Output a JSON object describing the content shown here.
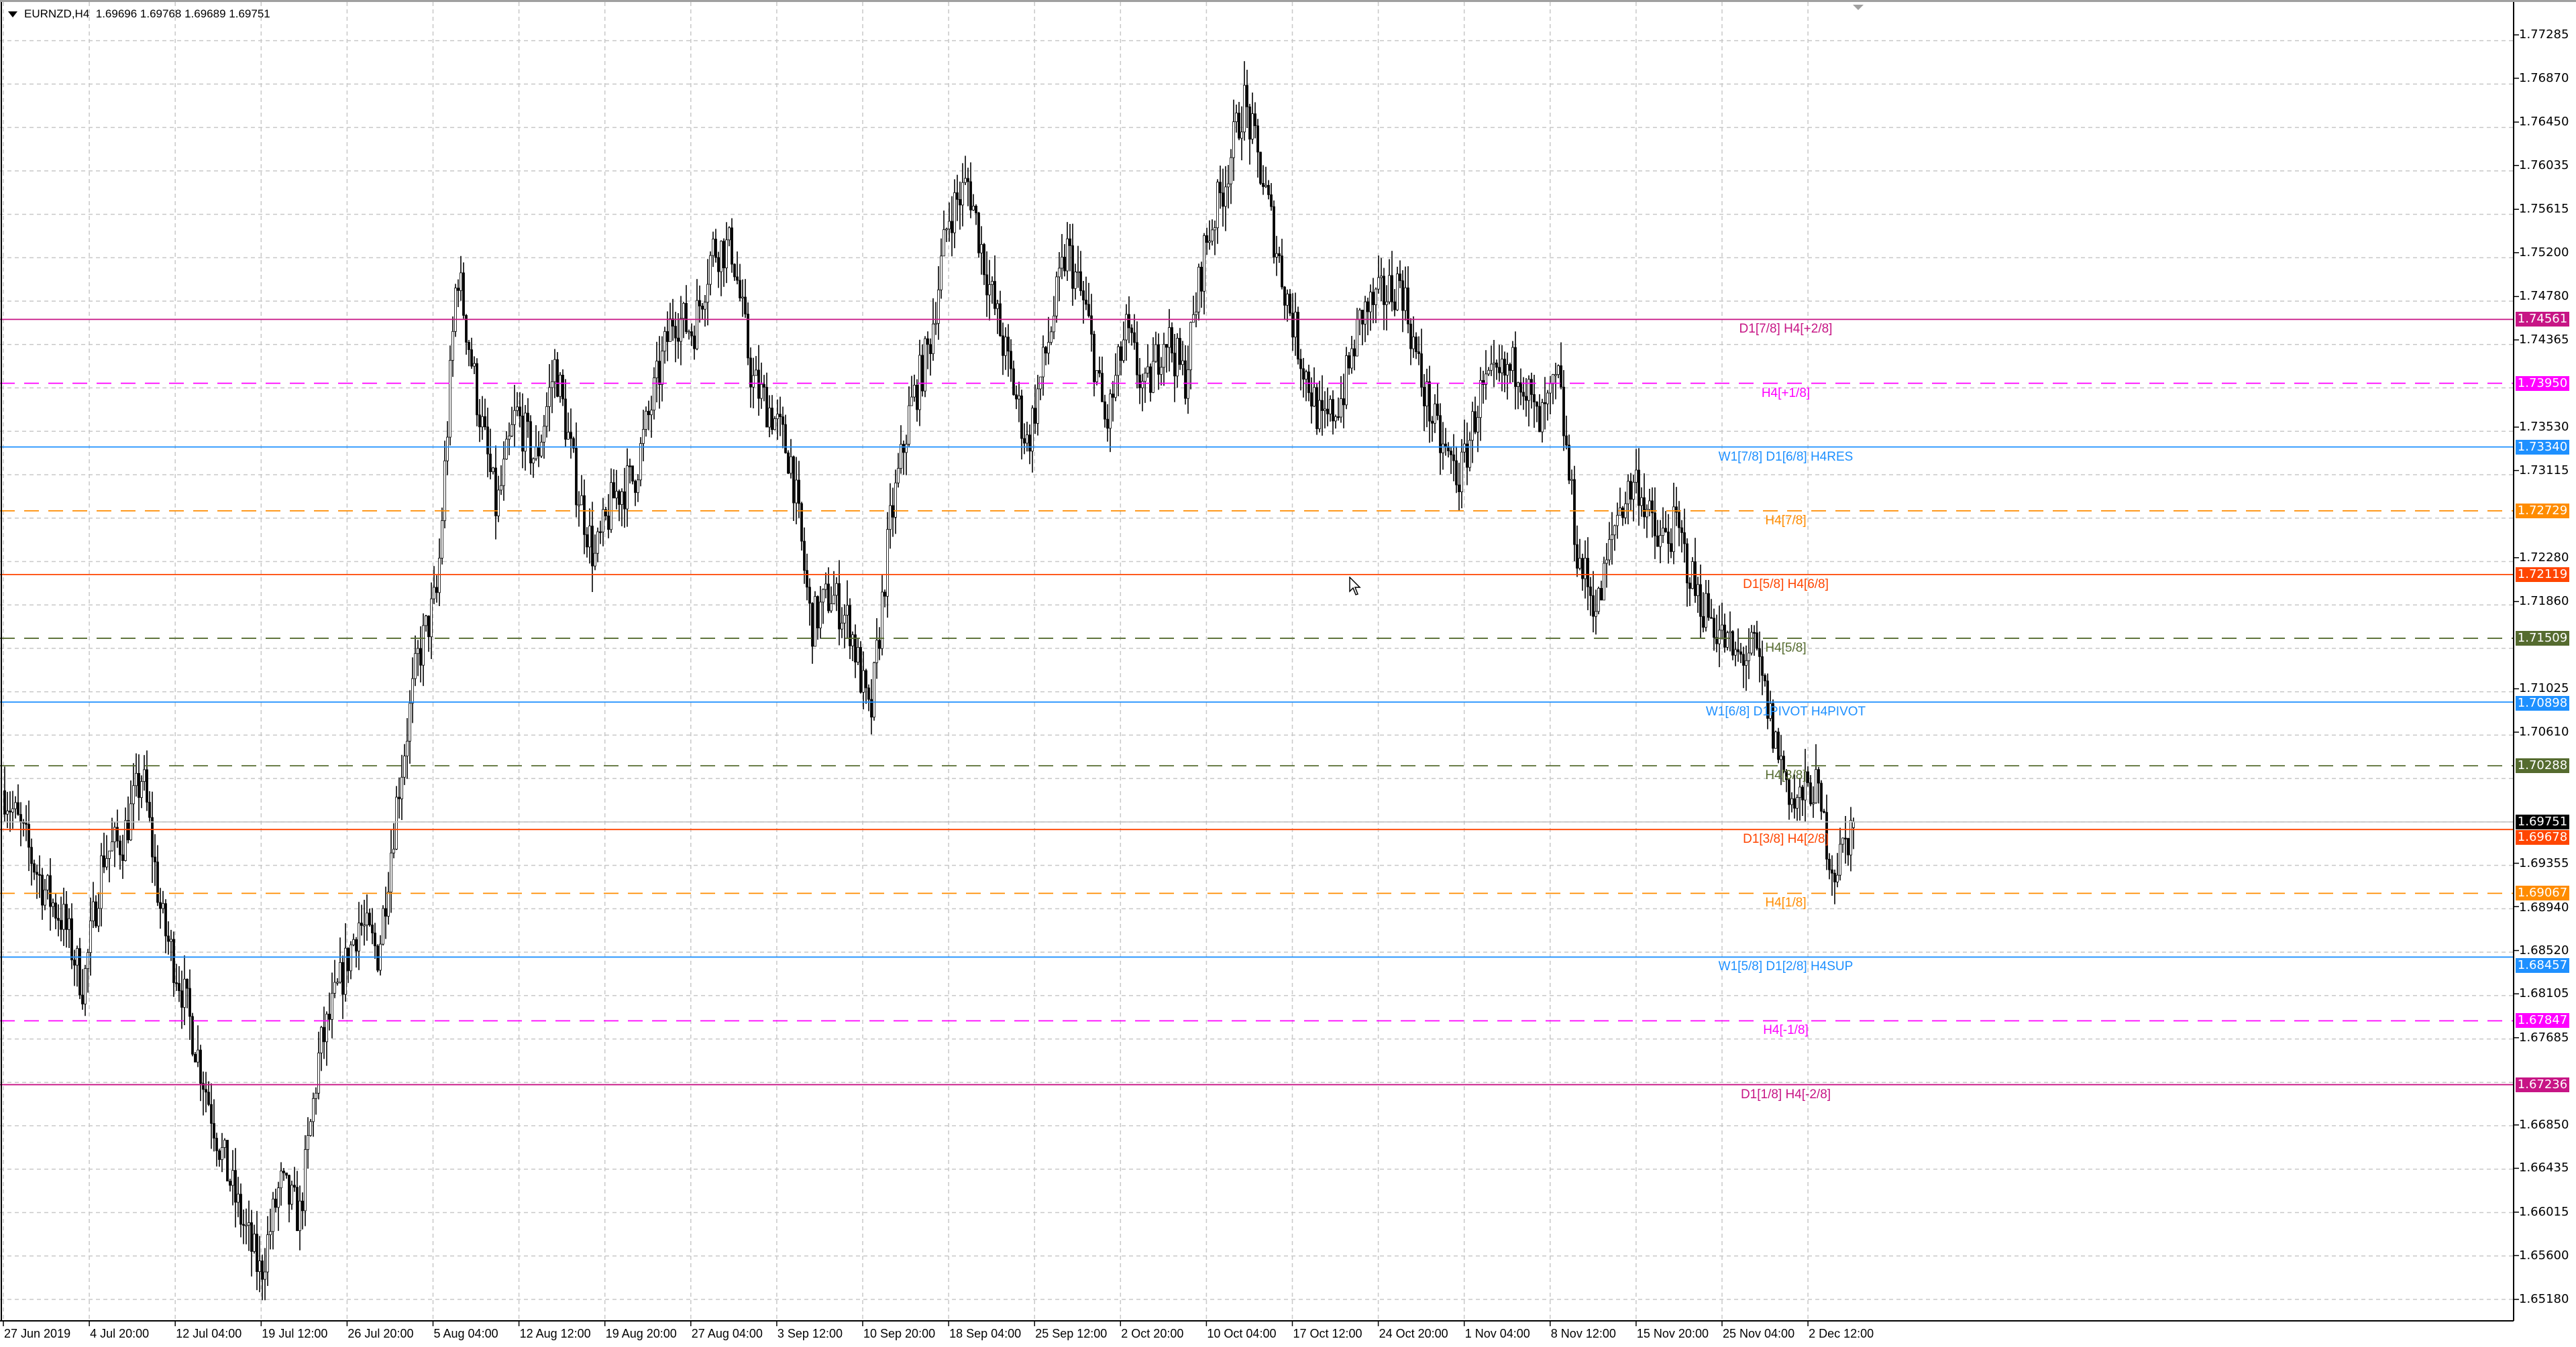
{
  "window": {
    "symbol": "EURNZD,H4",
    "ohlc": "1.69696 1.69768 1.69689 1.69751"
  },
  "chart_data": {
    "type": "candlestick",
    "symbol": "EURNZD",
    "timeframe": "H4",
    "last_bar": {
      "open": 1.69696,
      "high": 1.69768,
      "low": 1.69689,
      "close": 1.69751
    },
    "current_price": 1.69751,
    "ylim": [
      1.65,
      1.776
    ],
    "price_ticks": [
      "1.77285",
      "1.76870",
      "1.76450",
      "1.76035",
      "1.75615",
      "1.75200",
      "1.74780",
      "1.74365",
      "1.73530",
      "1.73115",
      "1.72280",
      "1.71860",
      "1.71025",
      "1.70610",
      "1.69355",
      "1.68940",
      "1.68520",
      "1.68105",
      "1.67685",
      "1.66850",
      "1.66435",
      "1.66015",
      "1.65600",
      "1.65180"
    ],
    "time_ticks": [
      "27 Jun 2019",
      "4 Jul 20:00",
      "12 Jul 04:00",
      "19 Jul 12:00",
      "26 Jul 20:00",
      "5 Aug 04:00",
      "12 Aug 12:00",
      "19 Aug 20:00",
      "27 Aug 04:00",
      "3 Sep 12:00",
      "10 Sep 20:00",
      "18 Sep 04:00",
      "25 Sep 12:00",
      "2 Oct 20:00",
      "10 Oct 04:00",
      "17 Oct 12:00",
      "24 Oct 20:00",
      "1 Nov 04:00",
      "8 Nov 12:00",
      "15 Nov 20:00",
      "25 Nov 04:00",
      "2 Dec 12:00"
    ],
    "approx_close_path": [
      1.7005,
      1.6958,
      1.6911,
      1.688,
      1.6817,
      1.6943,
      1.6958,
      1.7021,
      1.688,
      1.6817,
      1.6738,
      1.666,
      1.6597,
      1.6542,
      1.6628,
      1.6597,
      1.6754,
      1.6817,
      1.688,
      1.6849,
      1.7005,
      1.7131,
      1.7194,
      1.7508,
      1.7383,
      1.7273,
      1.7367,
      1.732,
      1.7414,
      1.7304,
      1.7226,
      1.7288,
      1.7304,
      1.7383,
      1.7461,
      1.7445,
      1.7524,
      1.7524,
      1.7398,
      1.7367,
      1.732,
      1.7163,
      1.7194,
      1.7163,
      1.7069,
      1.7257,
      1.7367,
      1.743,
      1.7556,
      1.7587,
      1.7493,
      1.7414,
      1.7336,
      1.743,
      1.7524,
      1.7461,
      1.7351,
      1.7445,
      1.7383,
      1.7445,
      1.7398,
      1.7524,
      1.7587,
      1.7666,
      1.7587,
      1.7493,
      1.7414,
      1.7351,
      1.7383,
      1.7461,
      1.7477,
      1.7493,
      1.7398,
      1.7336,
      1.7304,
      1.7383,
      1.7398,
      1.7414,
      1.7351,
      1.7398,
      1.7226,
      1.7179,
      1.7273,
      1.7304,
      1.7241,
      1.7257,
      1.7194,
      1.7163,
      1.7131,
      1.7139,
      1.7053,
      1.699,
      1.7013,
      1.6927,
      1.6975
    ],
    "levels": [
      {
        "price": "1.74561",
        "label": "D1[7/8] H4[+2/8]",
        "color": "#c71585",
        "style": "solid"
      },
      {
        "price": "1.73950",
        "label": "H4[+1/8]",
        "color": "#ff00ff",
        "style": "dashed"
      },
      {
        "price": "1.73340",
        "label": "W1[7/8] D1[6/8] H4RES",
        "color": "#1e90ff",
        "style": "solid"
      },
      {
        "price": "1.72729",
        "label": "H4[7/8]",
        "color": "#ff8c00",
        "style": "dashed"
      },
      {
        "price": "1.72119",
        "label": "D1[5/8] H4[6/8]",
        "color": "#ff4500",
        "style": "solid"
      },
      {
        "price": "1.71509",
        "label": "H4[5/8]",
        "color": "#556b2f",
        "style": "dashed"
      },
      {
        "price": "1.70898",
        "label": "W1[6/8] D1PIVOT H4PIVOT",
        "color": "#1e90ff",
        "style": "solid"
      },
      {
        "price": "1.70288",
        "label": "H4[3/8]",
        "color": "#556b2f",
        "style": "dashed"
      },
      {
        "price": "1.69678",
        "label": "D1[3/8] H4[2/8]",
        "color": "#ff4500",
        "style": "solid"
      },
      {
        "price": "1.69067",
        "label": "H4[1/8]",
        "color": "#ff8c00",
        "style": "dashed"
      },
      {
        "price": "1.68457",
        "label": "W1[5/8] D1[2/8] H4SUP",
        "color": "#1e90ff",
        "style": "solid"
      },
      {
        "price": "1.67847",
        "label": "H4[-1/8]",
        "color": "#ff00ff",
        "style": "dashed"
      },
      {
        "price": "1.67236",
        "label": "D1[1/8] H4[-2/8]",
        "color": "#c71585",
        "style": "solid"
      }
    ],
    "grid": true,
    "colors": {
      "bull_body": "#ffffff",
      "bear_body": "#000000",
      "wick": "#000000",
      "grid": "#c8c8c8",
      "current_price_tag": "#000000"
    }
  }
}
